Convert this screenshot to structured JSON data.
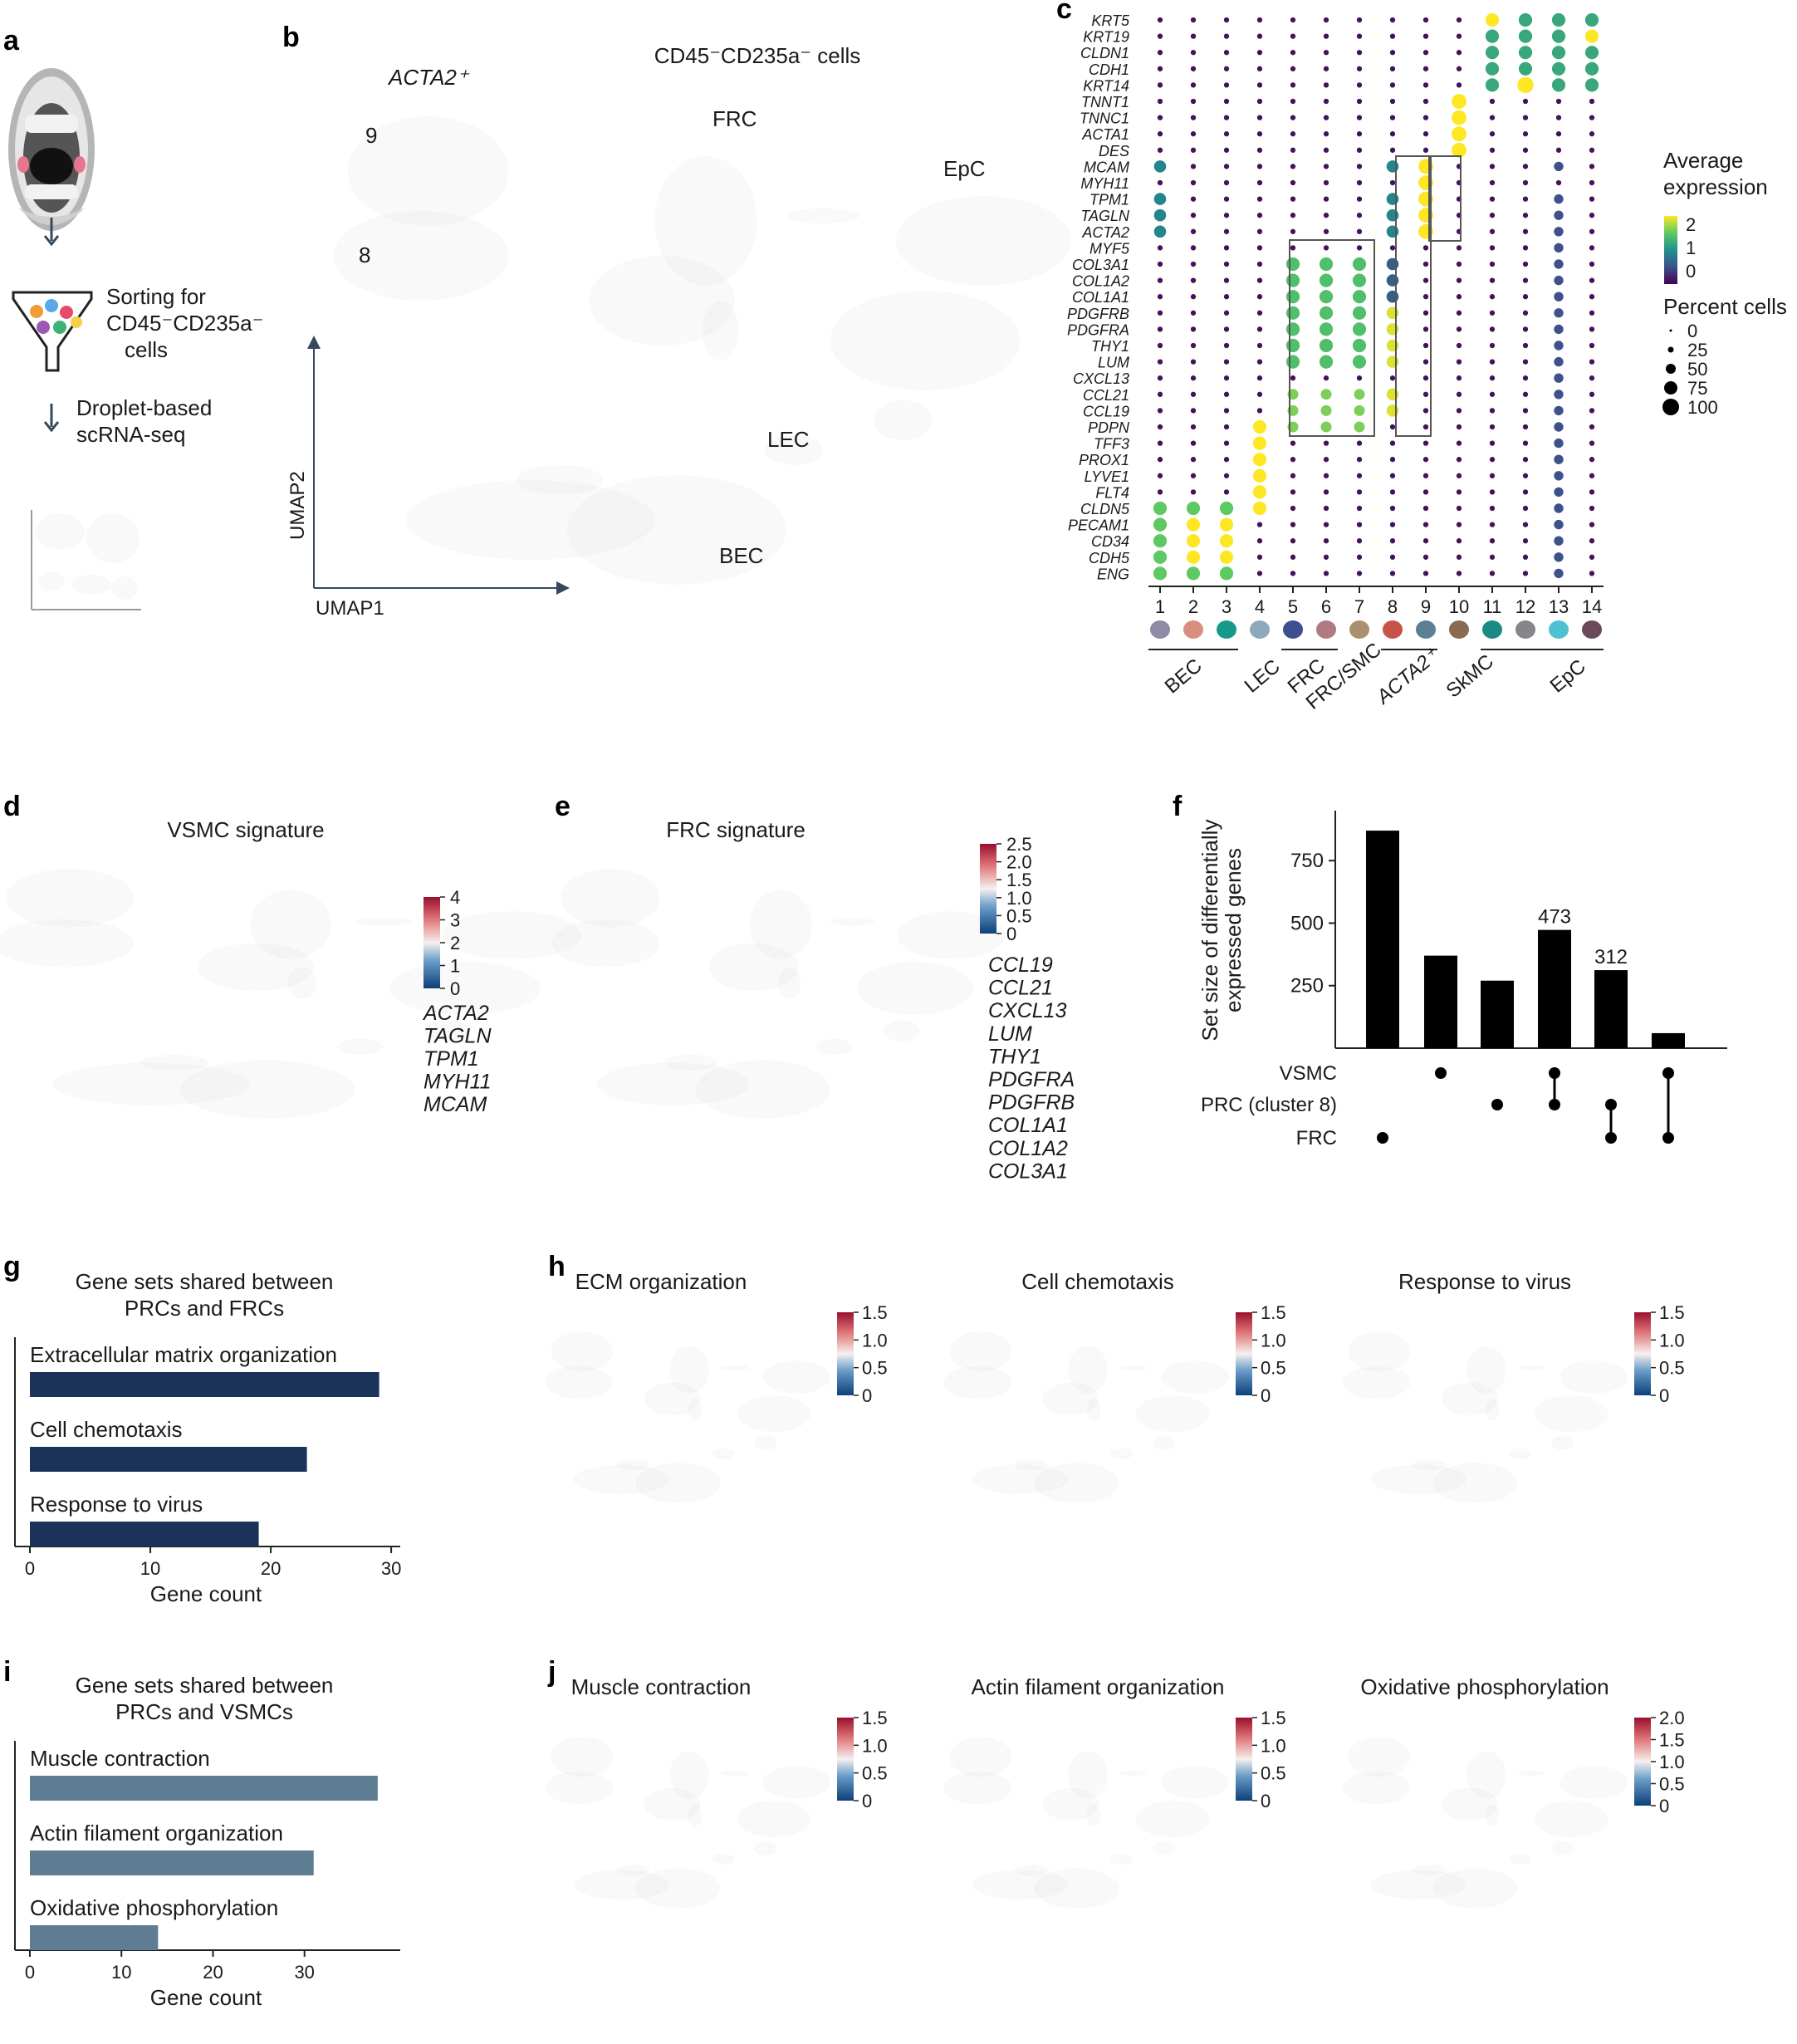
{
  "panels": {
    "a": "a",
    "b": "b",
    "c": "c",
    "d": "d",
    "e": "e",
    "f": "f",
    "g": "g",
    "h": "h",
    "i": "i",
    "j": "j"
  },
  "panel_a": {
    "sorting_text": [
      "Sorting for",
      "CD45⁻CD235a⁻",
      "cells"
    ],
    "scrna_text": [
      "Droplet-based",
      "scRNA-seq"
    ]
  },
  "panel_b": {
    "title": "CD45⁻CD235a⁻ cells",
    "x_axis": "UMAP1",
    "y_axis": "UMAP2",
    "labels": {
      "acta2": "ACTA2⁺",
      "c9": "9",
      "c8": "8",
      "frc": "FRC",
      "epc": "EpC",
      "lec": "LEC",
      "bec": "BEC"
    },
    "colors": {
      "c9": "#5b7f95",
      "c8": "#c8514a",
      "frc_pink": "#b07a80",
      "frc_blue": "#3c4f8f",
      "epc_gray": "#84868c",
      "epc_teal": "#1b8a84",
      "lec": "#8ea9bb",
      "bec_salmon": "#d98f7f",
      "bec_teal": "#17998a",
      "lavender": "#9b8fb5",
      "tan": "#a89070",
      "cyan": "#4ec0d0",
      "plum": "#6a4a5a"
    }
  },
  "panel_c": {
    "genes": [
      "KRT5",
      "KRT19",
      "CLDN1",
      "CDH1",
      "KRT14",
      "TNNT1",
      "TNNC1",
      "ACTA1",
      "DES",
      "MCAM",
      "MYH11",
      "TPM1",
      "TAGLN",
      "ACTA2",
      "MYF5",
      "COL3A1",
      "COL1A2",
      "COL1A1",
      "PDGFRB",
      "PDGFRA",
      "THY1",
      "LUM",
      "CXCL13",
      "CCL21",
      "CCL19",
      "PDPN",
      "TFF3",
      "PROX1",
      "LYVE1",
      "FLT4",
      "CLDN5",
      "PECAM1",
      "CD34",
      "CDH5",
      "ENG"
    ],
    "clusters": [
      "1",
      "2",
      "3",
      "4",
      "5",
      "6",
      "7",
      "8",
      "9",
      "10",
      "11",
      "12",
      "13",
      "14"
    ],
    "cluster_colors": [
      "#8e8aa8",
      "#d98f7f",
      "#17998a",
      "#8ea9bb",
      "#3c4f8f",
      "#b07a80",
      "#a89070",
      "#c8514a",
      "#5b7f95",
      "#8a6a50",
      "#1b8a84",
      "#84868c",
      "#4ec0d0",
      "#6a4a5a"
    ],
    "groups": [
      {
        "label": "BEC",
        "italic": false
      },
      {
        "label": "LEC",
        "italic": false
      },
      {
        "label": "FRC",
        "italic": false
      },
      {
        "label": "FRC/SMC",
        "italic": false
      },
      {
        "label": "ACTA2⁺",
        "italic": true
      },
      {
        "label": "SkMC",
        "italic": false
      },
      {
        "label": "EpC",
        "italic": false
      }
    ],
    "legend": {
      "avg_title": [
        "Average",
        "expression"
      ],
      "avg_ticks": [
        "2",
        "1",
        "0"
      ],
      "pct_title": "Percent cells",
      "pct_ticks": [
        "0",
        "25",
        "50",
        "75",
        "100"
      ]
    }
  },
  "panel_d": {
    "title": "VSMC signature",
    "scale_ticks": [
      "4",
      "3",
      "2",
      "1",
      "0"
    ],
    "genes": [
      "ACTA2",
      "TAGLN",
      "TPM1",
      "MYH11",
      "MCAM"
    ]
  },
  "panel_e": {
    "title": "FRC signature",
    "scale_ticks": [
      "2.5",
      "2.0",
      "1.5",
      "1.0",
      "0.5",
      "0"
    ],
    "genes": [
      "CCL19",
      "CCL21",
      "CXCL13",
      "LUM",
      "THY1",
      "PDGFRA",
      "PDGFRB",
      "COL1A1",
      "COL1A2",
      "COL3A1"
    ]
  },
  "chart_data": [
    {
      "type": "bar",
      "id": "f",
      "title": "",
      "ylabel": "Set size of differentially expressed genes",
      "ylim": [
        0,
        950
      ],
      "yticks": [
        "250",
        "500",
        "750"
      ],
      "values": [
        870,
        370,
        270,
        473,
        312,
        60
      ],
      "labels": [
        "",
        "",
        "",
        "473",
        "312",
        ""
      ],
      "set_names": [
        "VSMC",
        "PRC (cluster 8)",
        "FRC"
      ],
      "membership": [
        [
          2
        ],
        [
          0
        ],
        [
          1
        ],
        [
          0,
          1
        ],
        [
          1,
          2
        ],
        [
          0,
          2
        ]
      ]
    },
    {
      "type": "bar",
      "id": "g",
      "title": [
        "Gene sets shared between",
        "PRCs and FRCs"
      ],
      "categories": [
        "Extracellular matrix organization",
        "Cell chemotaxis",
        "Response to virus"
      ],
      "values": [
        29,
        23,
        19
      ],
      "xlabel": "Gene count",
      "xlim": [
        0,
        30
      ],
      "xticks": [
        "0",
        "10",
        "20",
        "30"
      ],
      "color": "#1b3358"
    },
    {
      "type": "bar",
      "id": "i",
      "title": [
        "Gene sets shared between",
        "PRCs and VSMCs"
      ],
      "categories": [
        "Muscle contraction",
        "Actin filament organization",
        "Oxidative phosphorylation"
      ],
      "values": [
        38,
        31,
        14
      ],
      "xlabel": "Gene count",
      "xlim": [
        0,
        40
      ],
      "xticks": [
        "0",
        "10",
        "20",
        "30"
      ],
      "color": "#5e7d92"
    }
  ],
  "panel_h": {
    "maps": [
      {
        "title": "ECM organization",
        "ticks": [
          "1.5",
          "1.0",
          "0.5",
          "0"
        ]
      },
      {
        "title": "Cell chemotaxis",
        "ticks": [
          "1.5",
          "1.0",
          "0.5",
          "0"
        ]
      },
      {
        "title": "Response to virus",
        "ticks": [
          "1.5",
          "1.0",
          "0.5",
          "0"
        ]
      }
    ]
  },
  "panel_j": {
    "maps": [
      {
        "title": "Muscle contraction",
        "ticks": [
          "1.5",
          "1.0",
          "0.5",
          "0"
        ]
      },
      {
        "title": "Actin filament organization",
        "ticks": [
          "1.5",
          "1.0",
          "0.5",
          "0"
        ]
      },
      {
        "title": "Oxidative phosphorylation",
        "ticks": [
          "2.0",
          "1.5",
          "1.0",
          "0.5",
          "0"
        ]
      }
    ]
  }
}
